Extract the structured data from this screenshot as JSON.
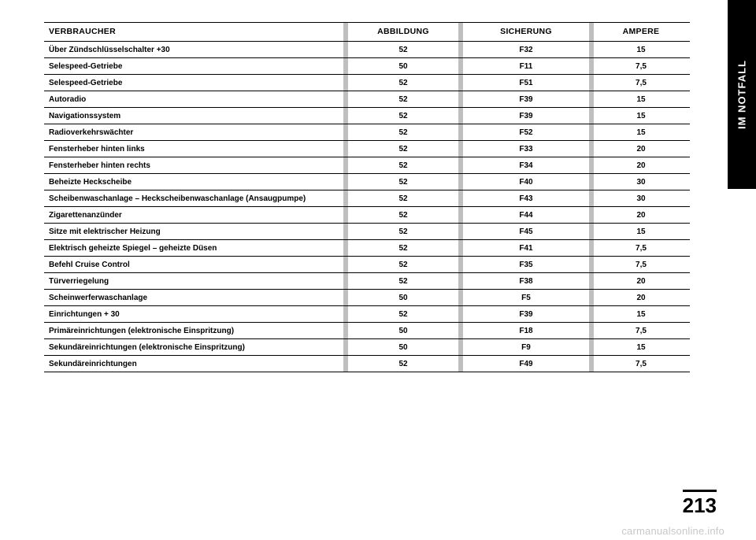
{
  "sideTab": "IM NOTFALL",
  "pageNumber": "213",
  "watermark": "carmanualsonline.info",
  "table": {
    "headers": {
      "verbraucher": "VERBRAUCHER",
      "abbildung": "ABBILDUNG",
      "sicherung": "SICHERUNG",
      "ampere": "AMPERE"
    },
    "rows": [
      {
        "v": "Über Zündschlüsselschalter +30",
        "a": "52",
        "s": "F32",
        "p": "15"
      },
      {
        "v": "Selespeed-Getriebe",
        "a": "50",
        "s": "F11",
        "p": "7,5"
      },
      {
        "v": "Selespeed-Getriebe",
        "a": "52",
        "s": "F51",
        "p": "7,5"
      },
      {
        "v": "Autoradio",
        "a": "52",
        "s": "F39",
        "p": "15"
      },
      {
        "v": "Navigationssystem",
        "a": "52",
        "s": "F39",
        "p": "15"
      },
      {
        "v": "Radioverkehrswächter",
        "a": "52",
        "s": "F52",
        "p": "15"
      },
      {
        "v": "Fensterheber hinten links",
        "a": "52",
        "s": "F33",
        "p": "20"
      },
      {
        "v": "Fensterheber hinten rechts",
        "a": "52",
        "s": "F34",
        "p": "20"
      },
      {
        "v": "Beheizte Heckscheibe",
        "a": "52",
        "s": "F40",
        "p": "30"
      },
      {
        "v": "Scheibenwaschanlage – Heckscheibenwaschanlage (Ansaugpumpe)",
        "a": "52",
        "s": "F43",
        "p": "30"
      },
      {
        "v": "Zigarettenanzünder",
        "a": "52",
        "s": "F44",
        "p": "20"
      },
      {
        "v": "Sitze mit elektrischer Heizung",
        "a": "52",
        "s": "F45",
        "p": "15"
      },
      {
        "v": "Elektrisch geheizte Spiegel – geheizte Düsen",
        "a": "52",
        "s": "F41",
        "p": "7,5"
      },
      {
        "v": "Befehl Cruise Control",
        "a": "52",
        "s": "F35",
        "p": "7,5"
      },
      {
        "v": "Türverriegelung",
        "a": "52",
        "s": "F38",
        "p": "20"
      },
      {
        "v": "Scheinwerferwaschanlage",
        "a": "50",
        "s": "F5",
        "p": "20"
      },
      {
        "v": "Einrichtungen + 30",
        "a": "52",
        "s": "F39",
        "p": "15"
      },
      {
        "v": "Primäreinrichtungen (elektronische Einspritzung)",
        "a": "50",
        "s": "F18",
        "p": "7,5"
      },
      {
        "v": "Sekundäreinrichtungen (elektronische Einspritzung)",
        "a": "50",
        "s": "F9",
        "p": "15"
      },
      {
        "v": "Sekundäreinrichtungen",
        "a": "52",
        "s": "F49",
        "p": "7,5"
      }
    ]
  }
}
